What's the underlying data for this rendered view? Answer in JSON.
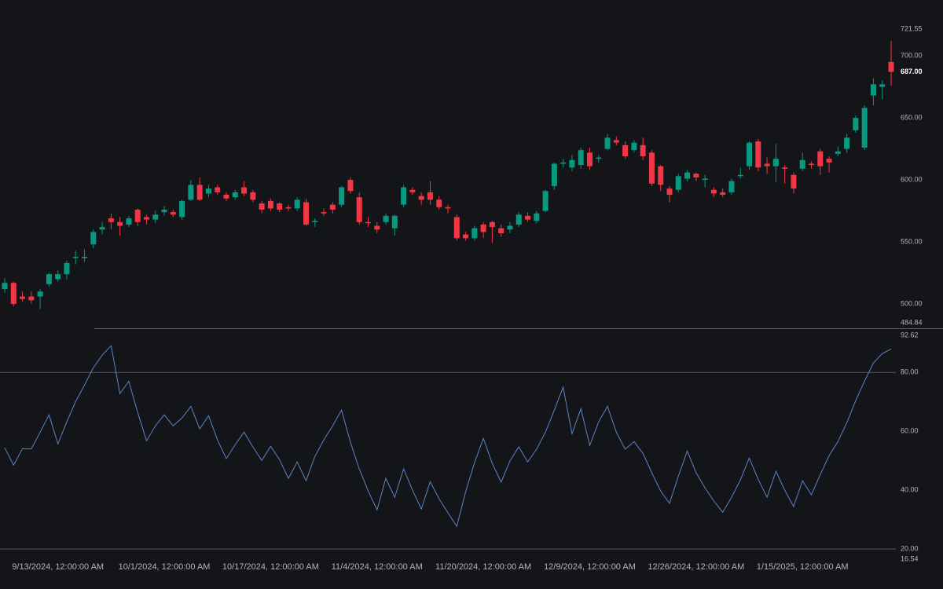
{
  "chart_data": [
    {
      "type": "candlestick",
      "categories": [
        null,
        null,
        null,
        null,
        null,
        null,
        "9/13/2024, 12:00:00 AM",
        null,
        null,
        null,
        null,
        null,
        null,
        null,
        null,
        null,
        null,
        null,
        "10/1/2024, 12:00:00 AM",
        null,
        null,
        null,
        null,
        null,
        null,
        null,
        null,
        null,
        null,
        null,
        "10/17/2024, 12:00:00 AM",
        null,
        null,
        null,
        null,
        null,
        null,
        null,
        null,
        null,
        null,
        null,
        "11/4/2024, 12:00:00 AM",
        null,
        null,
        null,
        null,
        null,
        null,
        null,
        null,
        null,
        null,
        null,
        "11/20/2024, 12:00:00 AM",
        null,
        null,
        null,
        null,
        null,
        null,
        null,
        null,
        null,
        null,
        null,
        "12/9/2024, 12:00:00 AM",
        null,
        null,
        null,
        null,
        null,
        null,
        null,
        null,
        null,
        null,
        null,
        "12/26/2024, 12:00:00 AM",
        null,
        null,
        null,
        null,
        null,
        null,
        null,
        null,
        null,
        null,
        null,
        "1/15/2025, 12:00:00 AM",
        null,
        null,
        null,
        null,
        null,
        null,
        null,
        null,
        null,
        null
      ],
      "open": [
        512,
        517,
        506,
        506,
        506,
        516,
        520,
        524,
        537,
        537,
        548,
        560,
        569,
        566,
        564,
        576,
        570,
        568,
        574,
        574,
        570,
        584,
        596,
        589,
        594,
        588,
        586,
        594,
        590,
        581,
        583,
        581,
        578,
        577,
        582,
        566,
        574,
        580,
        580,
        600,
        586,
        566,
        563,
        566,
        561,
        580,
        592,
        587,
        590,
        584,
        578,
        570,
        556,
        553,
        564,
        566,
        561,
        560,
        564,
        571,
        567,
        575,
        595,
        613,
        610,
        612,
        622,
        617,
        625,
        632,
        628,
        624,
        628,
        622,
        611,
        593,
        592,
        601,
        605,
        600,
        592,
        590,
        590,
        603,
        611,
        631,
        613,
        611,
        610,
        604,
        609,
        613,
        623,
        617,
        621,
        625,
        640,
        626,
        668,
        675,
        695
      ],
      "high": [
        521,
        518,
        510,
        510,
        512,
        525,
        527,
        535,
        543,
        544,
        560,
        566,
        573,
        570,
        571,
        577,
        572,
        575,
        579,
        576,
        584,
        600,
        602,
        596,
        596,
        590,
        592,
        599,
        592,
        583,
        585,
        582,
        580,
        586,
        585,
        569,
        577,
        582,
        595,
        602,
        590,
        570,
        566,
        573,
        572,
        596,
        594,
        590,
        599,
        587,
        580,
        572,
        558,
        563,
        566,
        567,
        564,
        566,
        574,
        574,
        575,
        592,
        614,
        617,
        620,
        626,
        626,
        620,
        637,
        635,
        631,
        632,
        634,
        624,
        612,
        595,
        605,
        608,
        606,
        604,
        594,
        593,
        601,
        610,
        631,
        633,
        618,
        629,
        612,
        606,
        622,
        615,
        625,
        619,
        627,
        637,
        652,
        660,
        682,
        680,
        712
      ],
      "low": [
        509,
        498,
        502,
        500,
        496,
        514,
        518,
        520,
        532,
        534,
        545,
        556,
        560,
        555,
        562,
        563,
        564,
        565,
        571,
        570,
        568,
        583,
        583,
        586,
        588,
        583,
        584,
        587,
        582,
        573,
        575,
        574,
        575,
        575,
        563,
        562,
        571,
        573,
        578,
        589,
        564,
        562,
        557,
        564,
        555,
        578,
        588,
        580,
        580,
        576,
        573,
        551,
        551,
        551,
        553,
        549,
        554,
        557,
        562,
        566,
        565,
        574,
        592,
        610,
        607,
        609,
        608,
        614,
        624,
        628,
        617,
        622,
        616,
        595,
        591,
        582,
        590,
        599,
        599,
        594,
        586,
        586,
        588,
        601,
        608,
        607,
        605,
        598,
        597,
        589,
        607,
        609,
        604,
        606,
        619,
        622,
        638,
        624,
        660,
        665,
        676
      ],
      "close": [
        517,
        500,
        504,
        503,
        510,
        524,
        524,
        533,
        538,
        538,
        558,
        562,
        566,
        563,
        569,
        566,
        568,
        572,
        576,
        572,
        583,
        596,
        584,
        593,
        590,
        585,
        590,
        589,
        584,
        576,
        577,
        576,
        577,
        584,
        564,
        567,
        573,
        576,
        594,
        591,
        566,
        565,
        560,
        571,
        571,
        594,
        590,
        584,
        584,
        578,
        577,
        553,
        553,
        561,
        558,
        562,
        557,
        563,
        572,
        568,
        573,
        591,
        613,
        614,
        616,
        624,
        611,
        618,
        634,
        630,
        619,
        630,
        619,
        597,
        596,
        588,
        603,
        606,
        602,
        601,
        589,
        588,
        599,
        604,
        630,
        610,
        611,
        617,
        609,
        593,
        616,
        612,
        611,
        614,
        623,
        634,
        650,
        658,
        677,
        677,
        687
      ],
      "up_color": "#089981",
      "down_color": "#f23645",
      "ylim": [
        484.84,
        721.55
      ],
      "yticks": [
        {
          "value": 721.55,
          "label": "721.55"
        },
        {
          "value": 700,
          "label": "700.00"
        },
        {
          "value": 650,
          "label": "650.00"
        },
        {
          "value": 600,
          "label": "600.00"
        },
        {
          "value": 550,
          "label": "550.00"
        },
        {
          "value": 500,
          "label": "500.00"
        },
        {
          "value": 484.84,
          "label": "484.84"
        }
      ],
      "price_marker": {
        "value": 687,
        "label": "687.00"
      }
    },
    {
      "type": "line",
      "values": [
        54.4,
        48.5,
        54.1,
        54,
        59.7,
        65.6,
        55.7,
        63.2,
        70.1,
        75.7,
        81.6,
        85.9,
        89.1,
        72.8,
        77,
        66.4,
        56.8,
        61.9,
        65.6,
        61.9,
        64.5,
        68.5,
        60.8,
        65.3,
        57.1,
        50.7,
        55.5,
        59.7,
        54.7,
        50.1,
        54.9,
        50.4,
        44,
        49.6,
        43.2,
        51.5,
        57.1,
        61.9,
        67.2,
        56.3,
        47.2,
        39.7,
        33.3,
        44,
        37.6,
        47.2,
        40,
        33.6,
        42.9,
        37.1,
        32.3,
        27.7,
        39.5,
        49.3,
        57.6,
        49.1,
        42.7,
        50,
        54.7,
        49.6,
        53.9,
        59.7,
        67.2,
        75,
        59.2,
        67.7,
        55.2,
        63.2,
        68.5,
        59.7,
        53.9,
        56.5,
        52.5,
        45.9,
        39.7,
        35.5,
        44.8,
        53.3,
        45.9,
        40.8,
        36.3,
        32.5,
        37.6,
        43.5,
        50.9,
        43.7,
        37.6,
        46.4,
        40,
        34.4,
        43.2,
        38.4,
        45.3,
        51.7,
        56.5,
        62.9,
        70.4,
        77.1,
        83.2,
        86.4,
        88
      ],
      "color": "#5b84c8",
      "ylim": [
        16.54,
        92.62
      ],
      "yticks": [
        {
          "value": 92.62,
          "label": "92.62"
        },
        {
          "value": 80,
          "label": "80.00"
        },
        {
          "value": 60,
          "label": "60.00"
        },
        {
          "value": 40,
          "label": "40.00"
        },
        {
          "value": 20,
          "label": "20.00"
        },
        {
          "value": 16.54,
          "label": "16.54"
        }
      ],
      "levels": [
        80,
        20
      ]
    }
  ]
}
